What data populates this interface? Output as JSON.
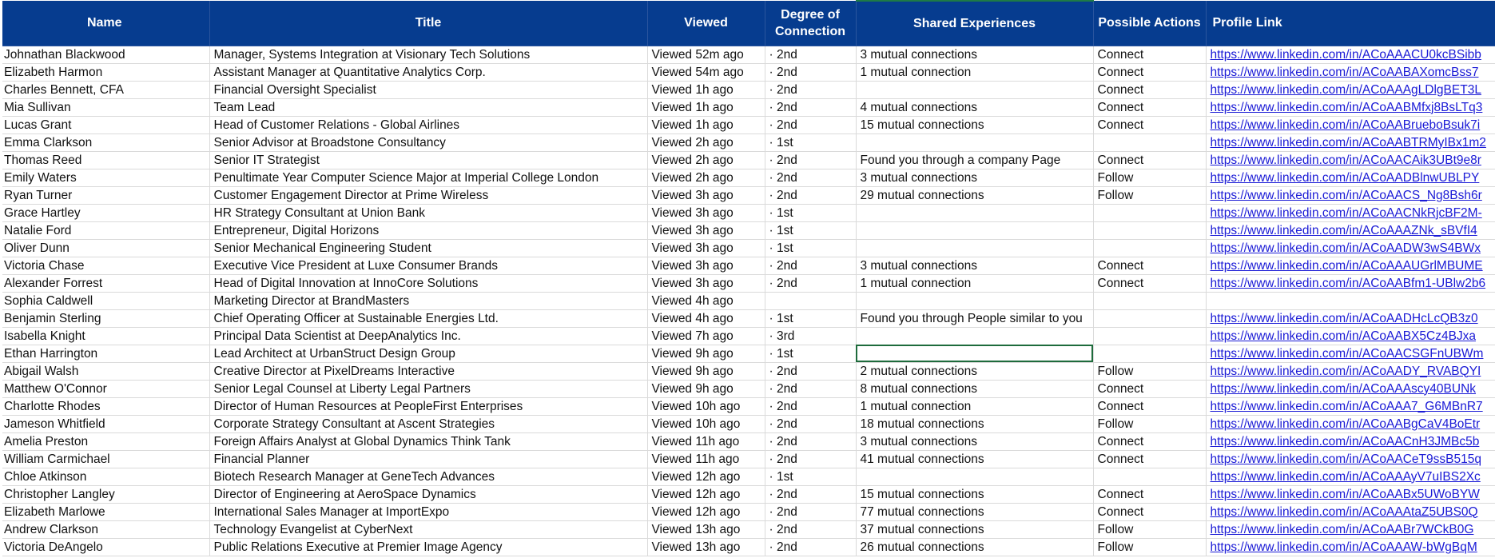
{
  "headers": {
    "name": "Name",
    "title": "Title",
    "viewed": "Viewed",
    "degree": "Degree of Connection",
    "shared": "Shared Experiences",
    "actions": "Possible Actions",
    "link": "Profile Link"
  },
  "rows": [
    {
      "name": "Johnathan Blackwood",
      "title": "Manager, Systems Integration at Visionary Tech Solutions",
      "viewed": "Viewed 52m ago",
      "degree": "· 2nd",
      "shared": "3 mutual connections",
      "action": "Connect",
      "link": "https://www.linkedin.com/in/ACoAAACU0kcBSibb"
    },
    {
      "name": "Elizabeth Harmon",
      "title": "Assistant Manager at Quantitative Analytics Corp.",
      "viewed": "Viewed 54m ago",
      "degree": "· 2nd",
      "shared": "1 mutual connection",
      "action": "Connect",
      "link": "https://www.linkedin.com/in/ACoAABAXomcBss7"
    },
    {
      "name": "Charles Bennett, CFA",
      "title": "Financial Oversight Specialist",
      "viewed": "Viewed 1h ago",
      "degree": "· 2nd",
      "shared": "",
      "action": "Connect",
      "link": "https://www.linkedin.com/in/ACoAAAgLDlgBET3L"
    },
    {
      "name": "Mia Sullivan",
      "title": "Team Lead",
      "viewed": "Viewed 1h ago",
      "degree": "· 2nd",
      "shared": "4 mutual connections",
      "action": "Connect",
      "link": "https://www.linkedin.com/in/ACoAABMfxj8BsLTq3"
    },
    {
      "name": "Lucas Grant",
      "title": "Head of Customer Relations - Global Airlines",
      "viewed": "Viewed 1h ago",
      "degree": "· 2nd",
      "shared": "15 mutual connections",
      "action": "Connect",
      "link": "https://www.linkedin.com/in/ACoAABrueboBsuk7i"
    },
    {
      "name": "Emma Clarkson",
      "title": "Senior Advisor at Broadstone Consultancy",
      "viewed": "Viewed 2h ago",
      "degree": "· 1st",
      "shared": "",
      "action": "",
      "link": "https://www.linkedin.com/in/ACoAABTRMyIBx1m2"
    },
    {
      "name": "Thomas Reed",
      "title": "Senior IT Strategist",
      "viewed": "Viewed 2h ago",
      "degree": "· 2nd",
      "shared": "Found you through a company Page",
      "action": "Connect",
      "link": "https://www.linkedin.com/in/ACoAACAik3UBt9e8r"
    },
    {
      "name": "Emily Waters",
      "title": "Penultimate Year Computer Science Major at Imperial College London",
      "viewed": "Viewed 2h ago",
      "degree": "· 2nd",
      "shared": "3 mutual connections",
      "action": "Follow",
      "link": "https://www.linkedin.com/in/ACoAADBlnwUBLPY"
    },
    {
      "name": "Ryan Turner",
      "title": "Customer Engagement Director at Prime Wireless",
      "viewed": "Viewed 3h ago",
      "degree": "· 2nd",
      "shared": "29 mutual connections",
      "action": "Follow",
      "link": "https://www.linkedin.com/in/ACoAACS_Ng8Bsh6r"
    },
    {
      "name": "Grace Hartley",
      "title": "HR Strategy Consultant at Union Bank",
      "viewed": "Viewed 3h ago",
      "degree": "· 1st",
      "shared": "",
      "action": "",
      "link": "https://www.linkedin.com/in/ACoAACNkRjcBF2M-"
    },
    {
      "name": "Natalie Ford",
      "title": "Entrepreneur, Digital Horizons",
      "viewed": "Viewed 3h ago",
      "degree": "· 1st",
      "shared": "",
      "action": "",
      "link": "https://www.linkedin.com/in/ACoAAAZNk_sBVfI4"
    },
    {
      "name": "Oliver Dunn",
      "title": "Senior Mechanical Engineering Student",
      "viewed": "Viewed 3h ago",
      "degree": "· 1st",
      "shared": "",
      "action": "",
      "link": "https://www.linkedin.com/in/ACoAADW3wS4BWx"
    },
    {
      "name": "Victoria Chase",
      "title": "Executive Vice President at Luxe Consumer Brands",
      "viewed": "Viewed 3h ago",
      "degree": "· 2nd",
      "shared": "3 mutual connections",
      "action": "Connect",
      "link": "https://www.linkedin.com/in/ACoAAAUGrlMBUME"
    },
    {
      "name": "Alexander Forrest",
      "title": "Head of Digital Innovation at InnoCore Solutions",
      "viewed": "Viewed 3h ago",
      "degree": "· 2nd",
      "shared": "1 mutual connection",
      "action": "Connect",
      "link": "https://www.linkedin.com/in/ACoAABfm1-UBlw2b6"
    },
    {
      "name": "Sophia Caldwell",
      "title": "Marketing Director at BrandMasters",
      "viewed": "Viewed 4h ago",
      "degree": "",
      "shared": "",
      "action": "",
      "link": ""
    },
    {
      "name": "Benjamin Sterling",
      "title": "Chief Operating Officer at Sustainable Energies Ltd.",
      "viewed": "Viewed 4h ago",
      "degree": "· 1st",
      "shared": "Found you through People similar to you",
      "action": "",
      "link": "https://www.linkedin.com/in/ACoAADHcLcQB3z0"
    },
    {
      "name": "Isabella Knight",
      "title": "Principal Data Scientist at DeepAnalytics Inc.",
      "viewed": "Viewed 7h ago",
      "degree": "· 3rd",
      "shared": "",
      "action": "",
      "link": "https://www.linkedin.com/in/ACoAABX5Cz4BJxa"
    },
    {
      "name": "Ethan Harrington",
      "title": "Lead Architect at UrbanStruct Design Group",
      "viewed": "Viewed 9h ago",
      "degree": "· 1st",
      "shared": "",
      "action": "",
      "link": "https://www.linkedin.com/in/ACoAACSGFnUBWm"
    },
    {
      "name": "Abigail Walsh",
      "title": "Creative Director at PixelDreams Interactive",
      "viewed": "Viewed 9h ago",
      "degree": "· 2nd",
      "shared": "2 mutual connections",
      "action": "Follow",
      "link": "https://www.linkedin.com/in/ACoAADY_RVABQYI"
    },
    {
      "name": "Matthew O'Connor",
      "title": "Senior Legal Counsel at Liberty Legal Partners",
      "viewed": "Viewed 9h ago",
      "degree": "· 2nd",
      "shared": "8 mutual connections",
      "action": "Connect",
      "link": "https://www.linkedin.com/in/ACoAAAscy40BUNk"
    },
    {
      "name": "Charlotte Rhodes",
      "title": "Director of Human Resources at PeopleFirst Enterprises",
      "viewed": "Viewed 10h ago",
      "degree": "· 2nd",
      "shared": "1 mutual connection",
      "action": "Connect",
      "link": "https://www.linkedin.com/in/ACoAAA7_G6MBnR7"
    },
    {
      "name": "Jameson Whitfield",
      "title": "Corporate Strategy Consultant at Ascent Strategies",
      "viewed": "Viewed 10h ago",
      "degree": "· 2nd",
      "shared": "18 mutual connections",
      "action": "Follow",
      "link": "https://www.linkedin.com/in/ACoAABgCaV4BoEtr"
    },
    {
      "name": "Amelia Preston",
      "title": "Foreign Affairs Analyst at Global Dynamics Think Tank",
      "viewed": "Viewed 11h ago",
      "degree": "· 2nd",
      "shared": "3 mutual connections",
      "action": "Connect",
      "link": "https://www.linkedin.com/in/ACoAACnH3JMBc5b"
    },
    {
      "name": "William Carmichael",
      "title": "Financial Planner",
      "viewed": "Viewed 11h ago",
      "degree": "· 2nd",
      "shared": "41 mutual connections",
      "action": "Connect",
      "link": "https://www.linkedin.com/in/ACoAACeT9ssB515q"
    },
    {
      "name": "Chloe Atkinson",
      "title": "Biotech Research Manager at GeneTech Advances",
      "viewed": "Viewed 12h ago",
      "degree": "· 1st",
      "shared": "",
      "action": "",
      "link": "https://www.linkedin.com/in/ACoAAAyV7uIBS2Xc"
    },
    {
      "name": "Christopher Langley",
      "title": "Director of Engineering at AeroSpace Dynamics",
      "viewed": "Viewed 12h ago",
      "degree": "· 2nd",
      "shared": "15 mutual connections",
      "action": "Connect",
      "link": "https://www.linkedin.com/in/ACoAABx5UWoBYW"
    },
    {
      "name": "Elizabeth Marlowe",
      "title": "International Sales Manager at ImportExpo",
      "viewed": "Viewed 12h ago",
      "degree": "· 2nd",
      "shared": "77 mutual connections",
      "action": "Connect",
      "link": "https://www.linkedin.com/in/ACoAAAtaZ5UBS0Q"
    },
    {
      "name": "Andrew Clarkson",
      "title": "Technology Evangelist at CyberNext",
      "viewed": "Viewed 13h ago",
      "degree": "· 2nd",
      "shared": "37 mutual connections",
      "action": "Follow",
      "link": "https://www.linkedin.com/in/ACoAABr7WCkB0G"
    },
    {
      "name": "Victoria DeAngelo",
      "title": "Public Relations Executive at Premier Image Agency",
      "viewed": "Viewed 13h ago",
      "degree": "· 2nd",
      "shared": "26 mutual connections",
      "action": "Follow",
      "link": "https://www.linkedin.com/in/ACoAAAW-bWgBqM"
    }
  ],
  "colors": {
    "header_bg": "#063c8f",
    "header_text": "#ffffff",
    "link": "#1a1ad6",
    "selection": "#1e6b3c"
  }
}
